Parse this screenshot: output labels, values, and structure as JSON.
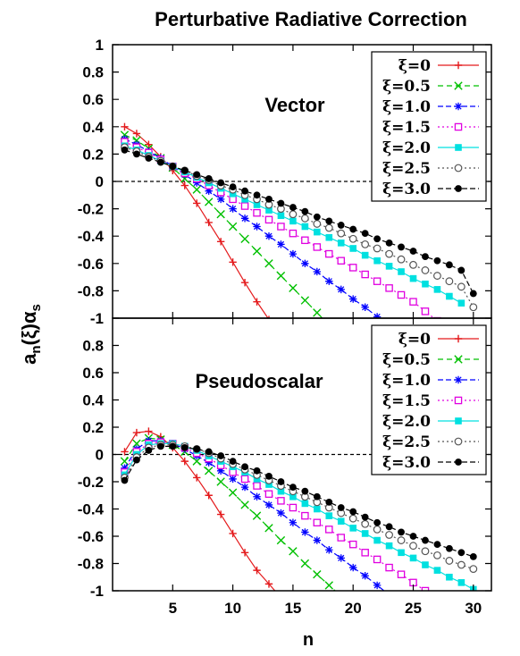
{
  "chart_data": {
    "type": "line",
    "title": "Perturbative Radiative Correction",
    "xlabel": "n",
    "ylabel": "a",
    "ylabel_sub1": "n",
    "ylabel_mid": "(ξ)α",
    "ylabel_sub2": "s",
    "xlim": [
      0,
      31.5
    ],
    "ylim": [
      -1,
      1
    ],
    "x_ticks": [
      5,
      10,
      15,
      20,
      25,
      30
    ],
    "legend_position": "top-right",
    "zero_line": true,
    "panels": [
      {
        "label": "Vector",
        "y_ticks": [
          1,
          0.8,
          0.6,
          0.4,
          0.2,
          0,
          -0.2,
          -0.4,
          -0.6,
          -0.8,
          -1
        ],
        "series": [
          {
            "name": "ξ=0",
            "color": "#e41a1c",
            "marker": "plus",
            "dash": "",
            "x": [
              1,
              2,
              3,
              4,
              5,
              6,
              7,
              8,
              9,
              10,
              11,
              12,
              13,
              14
            ],
            "y": [
              0.4,
              0.35,
              0.27,
              0.18,
              0.08,
              -0.03,
              -0.16,
              -0.3,
              -0.44,
              -0.59,
              -0.74,
              -0.88,
              -1.01,
              -1.15
            ]
          },
          {
            "name": "ξ=0.5",
            "color": "#00c000",
            "marker": "x",
            "dash": "6,4",
            "x": [
              1,
              2,
              3,
              4,
              5,
              6,
              7,
              8,
              9,
              10,
              11,
              12,
              13,
              14,
              15,
              16,
              17,
              18,
              19
            ],
            "y": [
              0.34,
              0.3,
              0.24,
              0.17,
              0.1,
              0.02,
              -0.06,
              -0.15,
              -0.24,
              -0.33,
              -0.42,
              -0.51,
              -0.6,
              -0.69,
              -0.78,
              -0.87,
              -0.96,
              -1.05,
              -1.14
            ]
          },
          {
            "name": "ξ=1.0",
            "color": "#0000ff",
            "marker": "star",
            "dash": "6,3",
            "x": [
              1,
              2,
              3,
              4,
              5,
              6,
              7,
              8,
              9,
              10,
              11,
              12,
              13,
              14,
              15,
              16,
              17,
              18,
              19,
              20,
              21,
              22,
              23,
              24
            ],
            "y": [
              0.31,
              0.27,
              0.22,
              0.17,
              0.11,
              0.05,
              -0.01,
              -0.07,
              -0.13,
              -0.2,
              -0.27,
              -0.33,
              -0.4,
              -0.46,
              -0.53,
              -0.6,
              -0.66,
              -0.73,
              -0.79,
              -0.86,
              -0.92,
              -0.99,
              -1.05,
              -1.12
            ]
          },
          {
            "name": "ξ=1.5",
            "color": "#e000e0",
            "marker": "sqopen",
            "dash": "2,3",
            "x": [
              1,
              2,
              3,
              4,
              5,
              6,
              7,
              8,
              9,
              10,
              11,
              12,
              13,
              14,
              15,
              16,
              17,
              18,
              19,
              20,
              21,
              22,
              23,
              24,
              25,
              26,
              27
            ],
            "y": [
              0.29,
              0.25,
              0.21,
              0.16,
              0.11,
              0.06,
              0.02,
              -0.03,
              -0.08,
              -0.13,
              -0.18,
              -0.23,
              -0.28,
              -0.33,
              -0.38,
              -0.43,
              -0.48,
              -0.53,
              -0.58,
              -0.63,
              -0.68,
              -0.73,
              -0.78,
              -0.83,
              -0.88,
              -0.95,
              -1.02
            ]
          },
          {
            "name": "ξ=2.0",
            "color": "#00e0e0",
            "marker": "sqfill",
            "dash": "",
            "x": [
              1,
              2,
              3,
              4,
              5,
              6,
              7,
              8,
              9,
              10,
              11,
              12,
              13,
              14,
              15,
              16,
              17,
              18,
              19,
              20,
              21,
              22,
              23,
              24,
              25,
              26,
              27,
              28,
              29
            ],
            "y": [
              0.26,
              0.23,
              0.19,
              0.15,
              0.11,
              0.07,
              0.03,
              -0.01,
              -0.05,
              -0.09,
              -0.13,
              -0.17,
              -0.21,
              -0.25,
              -0.29,
              -0.33,
              -0.37,
              -0.41,
              -0.45,
              -0.49,
              -0.54,
              -0.58,
              -0.62,
              -0.66,
              -0.71,
              -0.75,
              -0.79,
              -0.84,
              -0.89
            ]
          },
          {
            "name": "ξ=2.5",
            "color": "#555555",
            "marker": "circopen",
            "dash": "2,3",
            "x": [
              1,
              2,
              3,
              4,
              5,
              6,
              7,
              8,
              9,
              10,
              11,
              12,
              13,
              14,
              15,
              16,
              17,
              18,
              19,
              20,
              21,
              22,
              23,
              24,
              25,
              26,
              27,
              28,
              29,
              30
            ],
            "y": [
              0.25,
              0.22,
              0.18,
              0.15,
              0.11,
              0.08,
              0.04,
              0.01,
              -0.03,
              -0.06,
              -0.1,
              -0.13,
              -0.17,
              -0.2,
              -0.24,
              -0.27,
              -0.31,
              -0.34,
              -0.38,
              -0.42,
              -0.46,
              -0.49,
              -0.53,
              -0.57,
              -0.61,
              -0.65,
              -0.69,
              -0.73,
              -0.77,
              -0.92
            ]
          },
          {
            "name": "ξ=3.0",
            "color": "#000000",
            "marker": "circfill",
            "dash": "6,3",
            "x": [
              1,
              2,
              3,
              4,
              5,
              6,
              7,
              8,
              9,
              10,
              11,
              12,
              13,
              14,
              15,
              16,
              17,
              18,
              19,
              20,
              21,
              22,
              23,
              24,
              25,
              26,
              27,
              28,
              29,
              30
            ],
            "y": [
              0.23,
              0.2,
              0.17,
              0.14,
              0.11,
              0.08,
              0.05,
              0.02,
              -0.01,
              -0.04,
              -0.07,
              -0.1,
              -0.13,
              -0.16,
              -0.19,
              -0.22,
              -0.26,
              -0.29,
              -0.32,
              -0.35,
              -0.38,
              -0.42,
              -0.45,
              -0.48,
              -0.51,
              -0.55,
              -0.58,
              -0.61,
              -0.65,
              -0.82
            ]
          }
        ]
      },
      {
        "label": "Pseudoscalar",
        "y_ticks": [
          0.8,
          0.6,
          0.4,
          0.2,
          0,
          -0.2,
          -0.4,
          -0.6,
          -0.8,
          -1
        ],
        "series": [
          {
            "name": "ξ=0",
            "color": "#e41a1c",
            "marker": "plus",
            "dash": "",
            "x": [
              1,
              2,
              3,
              4,
              5,
              6,
              7,
              8,
              9,
              10,
              11,
              12,
              13,
              14
            ],
            "y": [
              0.02,
              0.16,
              0.17,
              0.13,
              0.05,
              -0.05,
              -0.17,
              -0.3,
              -0.44,
              -0.58,
              -0.72,
              -0.85,
              -0.95,
              -1.05
            ]
          },
          {
            "name": "ξ=0.5",
            "color": "#00c000",
            "marker": "x",
            "dash": "6,4",
            "x": [
              1,
              2,
              3,
              4,
              5,
              6,
              7,
              8,
              9,
              10,
              11,
              12,
              13,
              14,
              15,
              16,
              17,
              18,
              19
            ],
            "y": [
              -0.05,
              0.08,
              0.12,
              0.11,
              0.07,
              0.02,
              -0.05,
              -0.12,
              -0.2,
              -0.28,
              -0.37,
              -0.45,
              -0.54,
              -0.63,
              -0.71,
              -0.8,
              -0.88,
              -0.96,
              -1.04
            ]
          },
          {
            "name": "ξ=1.0",
            "color": "#0000ff",
            "marker": "star",
            "dash": "6,3",
            "x": [
              1,
              2,
              3,
              4,
              5,
              6,
              7,
              8,
              9,
              10,
              11,
              12,
              13,
              14,
              15,
              16,
              17,
              18,
              19,
              20,
              21,
              22,
              23
            ],
            "y": [
              -0.1,
              0.04,
              0.1,
              0.1,
              0.08,
              0.04,
              -0.01,
              -0.06,
              -0.12,
              -0.18,
              -0.24,
              -0.31,
              -0.37,
              -0.43,
              -0.5,
              -0.57,
              -0.63,
              -0.7,
              -0.76,
              -0.83,
              -0.89,
              -0.96,
              -1.03
            ]
          },
          {
            "name": "ξ=1.5",
            "color": "#e000e0",
            "marker": "sqopen",
            "dash": "2,3",
            "x": [
              1,
              2,
              3,
              4,
              5,
              6,
              7,
              8,
              9,
              10,
              11,
              12,
              13,
              14,
              15,
              16,
              17,
              18,
              19,
              20,
              21,
              22,
              23,
              24,
              25,
              26
            ],
            "y": [
              -0.13,
              0.02,
              0.08,
              0.09,
              0.08,
              0.05,
              0.01,
              -0.03,
              -0.08,
              -0.13,
              -0.18,
              -0.23,
              -0.29,
              -0.34,
              -0.39,
              -0.45,
              -0.5,
              -0.55,
              -0.61,
              -0.66,
              -0.72,
              -0.77,
              -0.83,
              -0.88,
              -0.94,
              -1.0
            ]
          },
          {
            "name": "ξ=2.0",
            "color": "#00e0e0",
            "marker": "sqfill",
            "dash": "",
            "x": [
              1,
              2,
              3,
              4,
              5,
              6,
              7,
              8,
              9,
              10,
              11,
              12,
              13,
              14,
              15,
              16,
              17,
              18,
              19,
              20,
              21,
              22,
              23,
              24,
              25,
              26,
              27,
              28,
              29,
              30
            ],
            "y": [
              -0.15,
              0.0,
              0.07,
              0.08,
              0.08,
              0.06,
              0.03,
              -0.01,
              -0.05,
              -0.09,
              -0.13,
              -0.18,
              -0.22,
              -0.27,
              -0.31,
              -0.36,
              -0.4,
              -0.45,
              -0.49,
              -0.54,
              -0.58,
              -0.63,
              -0.67,
              -0.72,
              -0.76,
              -0.81,
              -0.85,
              -0.9,
              -0.94,
              -0.99
            ]
          },
          {
            "name": "ξ=2.5",
            "color": "#555555",
            "marker": "circopen",
            "dash": "2,3",
            "x": [
              1,
              2,
              3,
              4,
              5,
              6,
              7,
              8,
              9,
              10,
              11,
              12,
              13,
              14,
              15,
              16,
              17,
              18,
              19,
              20,
              21,
              22,
              23,
              24,
              25,
              26,
              27,
              28,
              29,
              30
            ],
            "y": [
              -0.17,
              -0.02,
              0.05,
              0.07,
              0.07,
              0.06,
              0.04,
              0.01,
              -0.03,
              -0.07,
              -0.11,
              -0.15,
              -0.19,
              -0.23,
              -0.27,
              -0.31,
              -0.35,
              -0.39,
              -0.43,
              -0.47,
              -0.51,
              -0.55,
              -0.59,
              -0.63,
              -0.67,
              -0.71,
              -0.74,
              -0.78,
              -0.81,
              -0.84
            ]
          },
          {
            "name": "ξ=3.0",
            "color": "#000000",
            "marker": "circfill",
            "dash": "6,3",
            "x": [
              1,
              2,
              3,
              4,
              5,
              6,
              7,
              8,
              9,
              10,
              11,
              12,
              13,
              14,
              15,
              16,
              17,
              18,
              19,
              20,
              21,
              22,
              23,
              24,
              25,
              26,
              27,
              28,
              29,
              30
            ],
            "y": [
              -0.19,
              -0.04,
              0.03,
              0.06,
              0.06,
              0.05,
              0.04,
              0.02,
              -0.01,
              -0.05,
              -0.09,
              -0.12,
              -0.16,
              -0.2,
              -0.24,
              -0.27,
              -0.31,
              -0.35,
              -0.39,
              -0.42,
              -0.46,
              -0.5,
              -0.53,
              -0.57,
              -0.6,
              -0.63,
              -0.66,
              -0.69,
              -0.72,
              -0.75
            ]
          }
        ]
      }
    ]
  }
}
